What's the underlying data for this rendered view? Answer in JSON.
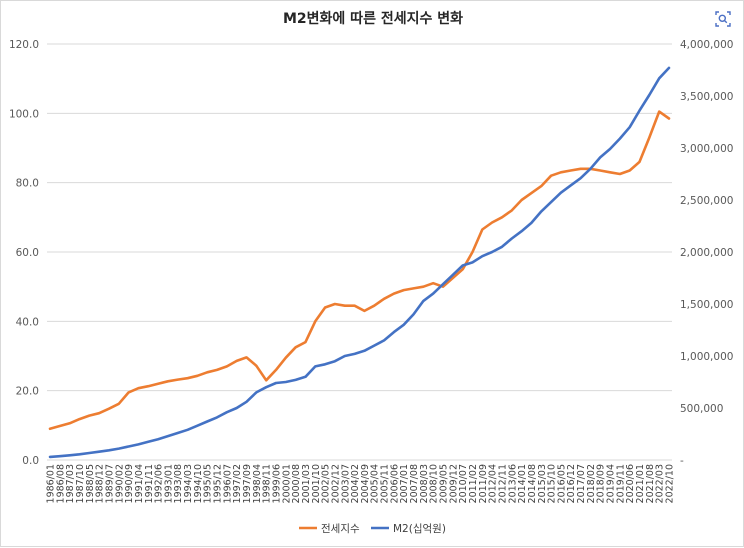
{
  "chart_data": {
    "type": "line",
    "title": "M2변화에 따른 전세지수 변화",
    "x": [
      "1986/01",
      "1986/08",
      "1987/03",
      "1987/10",
      "1988/05",
      "1988/12",
      "1989/07",
      "1990/02",
      "1990/09",
      "1991/04",
      "1991/11",
      "1992/06",
      "1993/01",
      "1993/08",
      "1994/03",
      "1994/10",
      "1995/05",
      "1995/12",
      "1996/07",
      "1997/02",
      "1997/09",
      "1998/04",
      "1998/11",
      "1999/06",
      "2000/01",
      "2000/08",
      "2001/03",
      "2001/10",
      "2002/05",
      "2002/12",
      "2003/07",
      "2004/02",
      "2004/09",
      "2005/04",
      "2005/11",
      "2006/06",
      "2007/01",
      "2007/08",
      "2008/03",
      "2008/10",
      "2009/05",
      "2009/12",
      "2010/07",
      "2011/02",
      "2011/09",
      "2012/04",
      "2012/11",
      "2013/06",
      "2014/01",
      "2014/08",
      "2015/03",
      "2015/10",
      "2016/05",
      "2016/12",
      "2017/07",
      "2018/02",
      "2018/09",
      "2019/04",
      "2019/11",
      "2020/06",
      "2021/01",
      "2021/08",
      "2022/03",
      "2022/10"
    ],
    "series": [
      {
        "name": "전세지수",
        "axis": "left",
        "color": "#ED7D31",
        "values": [
          9.0,
          9.8,
          10.6,
          11.8,
          12.8,
          13.5,
          14.8,
          16.2,
          19.5,
          20.7,
          21.3,
          22.0,
          22.7,
          23.2,
          23.6,
          24.3,
          25.3,
          26.0,
          27.0,
          28.6,
          29.6,
          27.2,
          23.0,
          26.0,
          29.5,
          32.5,
          34.0,
          40.0,
          44.0,
          45.0,
          44.5,
          44.5,
          43.0,
          44.5,
          46.5,
          48.0,
          49.0,
          49.5,
          50.0,
          51.0,
          50.0,
          52.5,
          55.0,
          60.0,
          66.5,
          68.5,
          70.0,
          72.0,
          75.0,
          77.0,
          79.0,
          82.0,
          83.0,
          83.5,
          84.0,
          84.0,
          83.5,
          83.0,
          82.5,
          83.5,
          86.0,
          93.0,
          100.5,
          98.5
        ]
      },
      {
        "name": "M2(십억원)",
        "axis": "right",
        "color": "#4472C4",
        "values": [
          30000,
          37000,
          45000,
          55000,
          67000,
          80000,
          93000,
          110000,
          130000,
          150000,
          175000,
          200000,
          230000,
          260000,
          290000,
          330000,
          370000,
          410000,
          460000,
          500000,
          560000,
          650000,
          700000,
          740000,
          750000,
          770000,
          800000,
          900000,
          920000,
          950000,
          1000000,
          1020000,
          1050000,
          1100000,
          1150000,
          1230000,
          1300000,
          1400000,
          1530000,
          1600000,
          1690000,
          1780000,
          1870000,
          1900000,
          1960000,
          2000000,
          2050000,
          2130000,
          2200000,
          2280000,
          2390000,
          2480000,
          2570000,
          2640000,
          2710000,
          2800000,
          2910000,
          2990000,
          3090000,
          3200000,
          3360000,
          3510000,
          3670000,
          3770000
        ]
      }
    ],
    "y_left": {
      "min": 0,
      "max": 120,
      "ticks": [
        "0.0",
        "20.0",
        "40.0",
        "60.0",
        "80.0",
        "100.0",
        "120.0"
      ]
    },
    "y_right": {
      "min": 0,
      "max": 4000000,
      "ticks": [
        "-",
        "500,000",
        "1,000,000",
        "1,500,000",
        "2,000,000",
        "2,500,000",
        "3,000,000",
        "3,500,000",
        "4,000,000"
      ]
    },
    "grid": true,
    "legend_position": "bottom"
  },
  "lens_icon": "image-search-icon"
}
